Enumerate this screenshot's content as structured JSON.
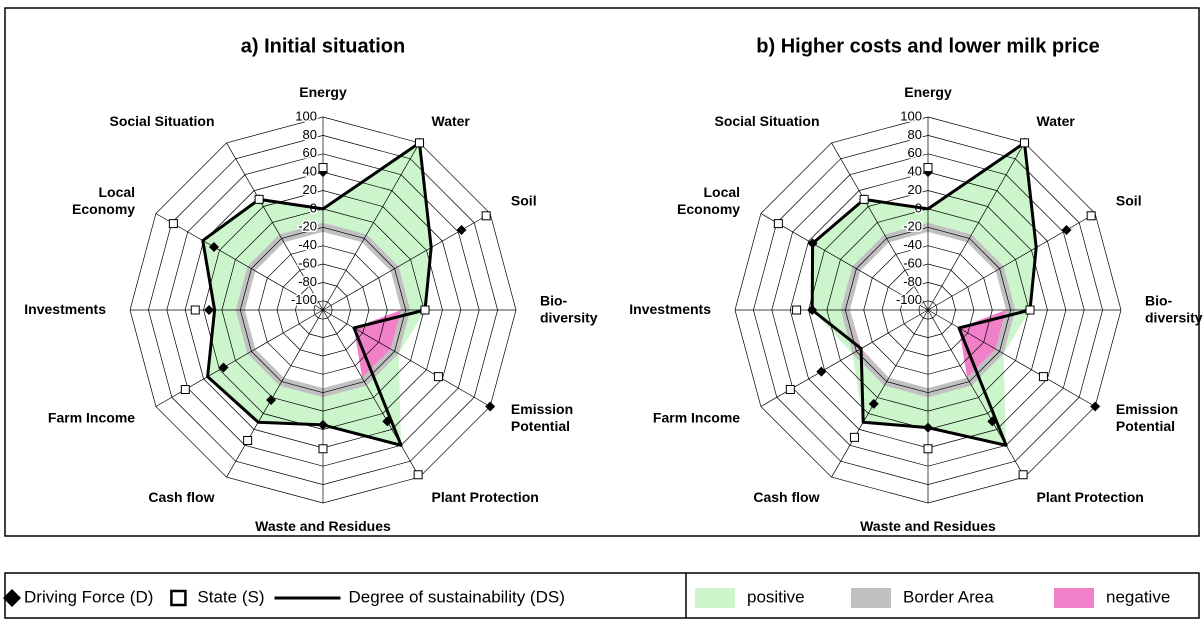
{
  "chart_data": [
    {
      "type": "radar",
      "title": "a)  Initial situation",
      "categories": [
        "Energy",
        "Water",
        "Soil",
        "Bio-\ndiversity",
        "Emission\nPotential",
        "Plant Protection",
        "Waste and Residues",
        "Cash flow",
        "Farm Income",
        "Investments",
        "Local\nEconomy",
        "Social Situation"
      ],
      "ylim": [
        -110,
        100
      ],
      "yticks": [
        -100,
        -80,
        -60,
        -40,
        -20,
        0,
        20,
        40,
        60,
        80,
        100
      ],
      "series": [
        {
          "name": "Driving Force (D)",
          "marker": "diamond",
          "color": "#000000",
          "values": [
            40,
            100,
            64,
            0,
            100,
            30,
            15,
            3,
            15,
            14,
            27,
            29
          ]
        },
        {
          "name": "State (S)",
          "marker": "square",
          "color": "#000000",
          "values": [
            45,
            100,
            95,
            1,
            35,
            97,
            41,
            54,
            63,
            29,
            78,
            29
          ]
        },
        {
          "name": "Degree of sustainability (DS)",
          "marker": "line",
          "color": "#000000",
          "values": [
            0,
            100,
            26,
            1,
            -71,
            60,
            15,
            31,
            35,
            8,
            41,
            29
          ]
        }
      ]
    },
    {
      "type": "radar",
      "title": "b)  Higher costs   and  lower milk price",
      "categories": [
        "Energy",
        "Water",
        "Soil",
        "Bio-\ndiversity",
        "Emission\nPotential",
        "Plant Protection",
        "Waste and Residues",
        "Cash flow",
        "Farm Income",
        "Investments",
        "Local\nEconomy",
        "Social Situation"
      ],
      "ylim": [
        -110,
        100
      ],
      "yticks": [
        -100,
        -80,
        -60,
        -40,
        -20,
        0,
        20,
        40,
        60,
        80,
        100
      ],
      "series": [
        {
          "name": "Driving Force (D)",
          "marker": "diamond",
          "color": "#000000",
          "values": [
            40,
            100,
            64,
            0,
            100,
            30,
            18,
            8,
            24,
            16,
            35,
            29
          ]
        },
        {
          "name": "State (S)",
          "marker": "square",
          "color": "#000000",
          "values": [
            45,
            100,
            95,
            1,
            35,
            97,
            41,
            50,
            63,
            33,
            78,
            29
          ]
        },
        {
          "name": "Degree of sustainability (DS)",
          "marker": "line",
          "color": "#000000",
          "values": [
            0,
            100,
            26,
            1,
            -71,
            60,
            18,
            31,
            -26,
            16,
            35,
            29
          ]
        }
      ]
    }
  ],
  "regions": [
    {
      "name": "positive",
      "color": "#ccf5cc",
      "above": -15
    },
    {
      "name": "Border Area",
      "color": "#c0c0c0",
      "range": [
        -25,
        -15
      ]
    },
    {
      "name": "negative",
      "color": "#f080c8",
      "below": -25
    }
  ]
}
